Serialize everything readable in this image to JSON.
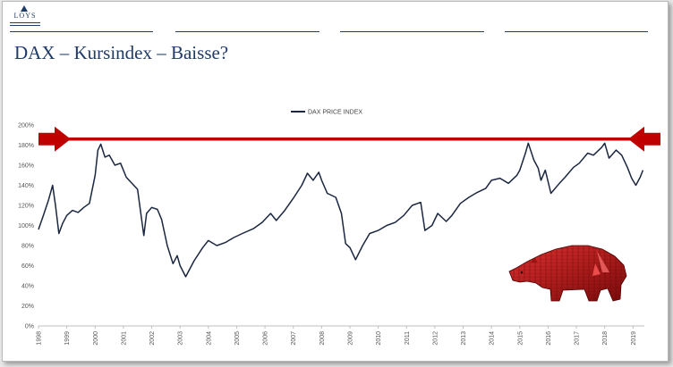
{
  "logo": {
    "text": "LOYS"
  },
  "slide_title": "DAX – Kursindex – Baisse?",
  "colors": {
    "series": "#1b2640",
    "arrow": "#c00000",
    "title": "#1f3b66",
    "grid": "#e4e4e4"
  },
  "decoration": {
    "icon": "bear-icon"
  },
  "chart_data": {
    "type": "line",
    "series": [
      {
        "name": "DAX PRICE INDEX",
        "points": [
          [
            1998.0,
            96
          ],
          [
            1998.15,
            108
          ],
          [
            1998.35,
            125
          ],
          [
            1998.5,
            140
          ],
          [
            1998.6,
            120
          ],
          [
            1998.72,
            92
          ],
          [
            1998.85,
            102
          ],
          [
            1999.0,
            110
          ],
          [
            1999.2,
            115
          ],
          [
            1999.4,
            113
          ],
          [
            1999.6,
            118
          ],
          [
            1999.8,
            122
          ],
          [
            2000.0,
            150
          ],
          [
            2000.1,
            175
          ],
          [
            2000.2,
            181
          ],
          [
            2000.35,
            168
          ],
          [
            2000.5,
            170
          ],
          [
            2000.7,
            160
          ],
          [
            2000.9,
            162
          ],
          [
            2001.1,
            148
          ],
          [
            2001.3,
            142
          ],
          [
            2001.5,
            136
          ],
          [
            2001.72,
            90
          ],
          [
            2001.82,
            112
          ],
          [
            2002.0,
            118
          ],
          [
            2002.2,
            116
          ],
          [
            2002.35,
            106
          ],
          [
            2002.55,
            80
          ],
          [
            2002.75,
            62
          ],
          [
            2002.9,
            70
          ],
          [
            2003.0,
            60
          ],
          [
            2003.2,
            49
          ],
          [
            2003.5,
            65
          ],
          [
            2003.8,
            78
          ],
          [
            2004.0,
            85
          ],
          [
            2004.3,
            80
          ],
          [
            2004.6,
            83
          ],
          [
            2004.9,
            88
          ],
          [
            2005.2,
            92
          ],
          [
            2005.6,
            97
          ],
          [
            2005.9,
            103
          ],
          [
            2006.2,
            112
          ],
          [
            2006.4,
            105
          ],
          [
            2006.7,
            115
          ],
          [
            2007.0,
            127
          ],
          [
            2007.3,
            140
          ],
          [
            2007.5,
            152
          ],
          [
            2007.7,
            145
          ],
          [
            2007.9,
            153
          ],
          [
            2008.0,
            145
          ],
          [
            2008.2,
            132
          ],
          [
            2008.5,
            128
          ],
          [
            2008.7,
            112
          ],
          [
            2008.85,
            82
          ],
          [
            2009.0,
            78
          ],
          [
            2009.2,
            66
          ],
          [
            2009.45,
            80
          ],
          [
            2009.7,
            92
          ],
          [
            2010.0,
            95
          ],
          [
            2010.3,
            100
          ],
          [
            2010.6,
            103
          ],
          [
            2010.9,
            110
          ],
          [
            2011.2,
            120
          ],
          [
            2011.5,
            123
          ],
          [
            2011.65,
            95
          ],
          [
            2011.9,
            100
          ],
          [
            2012.1,
            112
          ],
          [
            2012.4,
            104
          ],
          [
            2012.6,
            110
          ],
          [
            2012.9,
            122
          ],
          [
            2013.2,
            128
          ],
          [
            2013.5,
            133
          ],
          [
            2013.8,
            137
          ],
          [
            2014.0,
            145
          ],
          [
            2014.3,
            147
          ],
          [
            2014.6,
            142
          ],
          [
            2014.9,
            150
          ],
          [
            2015.0,
            155
          ],
          [
            2015.2,
            172
          ],
          [
            2015.3,
            182
          ],
          [
            2015.5,
            165
          ],
          [
            2015.65,
            157
          ],
          [
            2015.75,
            145
          ],
          [
            2015.9,
            155
          ],
          [
            2016.1,
            132
          ],
          [
            2016.4,
            142
          ],
          [
            2016.6,
            148
          ],
          [
            2016.9,
            158
          ],
          [
            2017.1,
            162
          ],
          [
            2017.4,
            172
          ],
          [
            2017.6,
            170
          ],
          [
            2017.9,
            178
          ],
          [
            2018.0,
            182
          ],
          [
            2018.15,
            167
          ],
          [
            2018.4,
            175
          ],
          [
            2018.6,
            170
          ],
          [
            2018.8,
            158
          ],
          [
            2018.95,
            147
          ],
          [
            2019.1,
            140
          ],
          [
            2019.25,
            148
          ],
          [
            2019.35,
            155
          ]
        ]
      }
    ],
    "x_ticks": [
      "1998",
      "1999",
      "2000",
      "2001",
      "2002",
      "2003",
      "2004",
      "2005",
      "2006",
      "2007",
      "2008",
      "2009",
      "2010",
      "2011",
      "2012",
      "2013",
      "2014",
      "2015",
      "2016",
      "2017",
      "2018",
      "2019"
    ],
    "y_ticks": [
      "0%",
      "20%",
      "40%",
      "60%",
      "80%",
      "100%",
      "120%",
      "140%",
      "160%",
      "180%",
      "200%"
    ],
    "xlim": [
      1998,
      2019.4
    ],
    "ylim": [
      0,
      200
    ],
    "reference_line": 186,
    "legend_position": "top-center",
    "grid": false
  }
}
